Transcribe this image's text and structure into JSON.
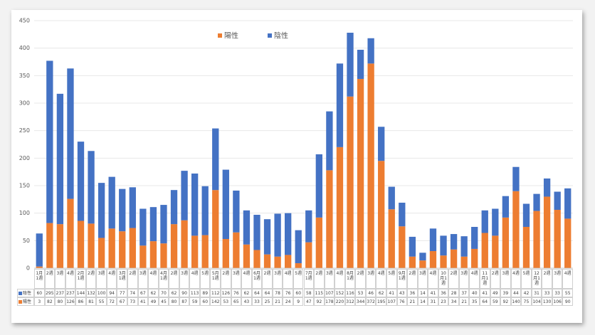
{
  "chart_data": {
    "type": "stacked_bar",
    "categories": [
      "1月1週",
      "2週",
      "3週",
      "4週",
      "2月1週",
      "2週",
      "3週",
      "4週",
      "3月1週",
      "2週",
      "3週",
      "4週",
      "4月1週",
      "2週",
      "3週",
      "4週",
      "5週",
      "5月1週",
      "2週",
      "3週",
      "4週",
      "6月1週",
      "2週",
      "3週",
      "4週",
      "5週",
      "7月1週",
      "2週",
      "3週",
      "4週",
      "8月1週",
      "2週",
      "3週",
      "4週",
      "5週",
      "9月1週",
      "2週",
      "3週",
      "4週",
      "10月1週",
      "2週",
      "3週",
      "4週",
      "11月1週",
      "2週",
      "3週",
      "4週",
      "5週",
      "12月1週",
      "2週",
      "3週",
      "4週"
    ],
    "series": [
      {
        "name": "陽性",
        "color": "#ed7d31",
        "values": [
          3,
          82,
          80,
          126,
          86,
          81,
          55,
          72,
          67,
          73,
          41,
          49,
          45,
          80,
          87,
          59,
          60,
          142,
          53,
          65,
          43,
          33,
          25,
          21,
          24,
          9,
          47,
          92,
          178,
          220,
          312,
          344,
          372,
          195,
          107,
          76,
          21,
          14,
          31,
          23,
          34,
          21,
          35,
          64,
          59,
          92,
          140,
          75,
          104,
          130,
          106,
          90
        ]
      },
      {
        "name": "陰性",
        "color": "#4472c4",
        "values": [
          60,
          295,
          237,
          237,
          144,
          132,
          100,
          94,
          77,
          74,
          67,
          62,
          70,
          62,
          90,
          113,
          89,
          112,
          126,
          76,
          62,
          64,
          64,
          78,
          76,
          60,
          58,
          115,
          107,
          152,
          116,
          53,
          46,
          62,
          41,
          43,
          36,
          14,
          41,
          36,
          28,
          37,
          40,
          41,
          49,
          39,
          44,
          42,
          31,
          33,
          33,
          55
        ]
      }
    ],
    "ylim": [
      0,
      450
    ],
    "yticks": [
      0,
      50,
      100,
      150,
      200,
      250,
      300,
      350,
      400,
      450
    ],
    "grid": true,
    "legend": "top"
  }
}
